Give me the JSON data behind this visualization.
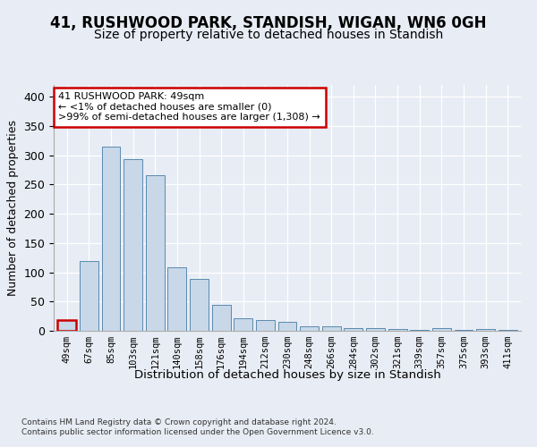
{
  "title": "41, RUSHWOOD PARK, STANDISH, WIGAN, WN6 0GH",
  "subtitle": "Size of property relative to detached houses in Standish",
  "xlabel": "Distribution of detached houses by size in Standish",
  "ylabel": "Number of detached properties",
  "bar_color": "#c8d8e8",
  "bar_edge_color": "#5a8ab0",
  "categories": [
    "49sqm",
    "67sqm",
    "85sqm",
    "103sqm",
    "121sqm",
    "140sqm",
    "158sqm",
    "176sqm",
    "194sqm",
    "212sqm",
    "230sqm",
    "248sqm",
    "266sqm",
    "284sqm",
    "302sqm",
    "321sqm",
    "339sqm",
    "357sqm",
    "375sqm",
    "393sqm",
    "411sqm"
  ],
  "values": [
    19,
    119,
    315,
    293,
    265,
    109,
    88,
    45,
    21,
    18,
    15,
    8,
    7,
    5,
    5,
    3,
    1,
    4,
    1,
    3,
    2
  ],
  "ylim": [
    0,
    420
  ],
  "yticks": [
    0,
    50,
    100,
    150,
    200,
    250,
    300,
    350,
    400
  ],
  "annotation_text": "41 RUSHWOOD PARK: 49sqm\n← <1% of detached houses are smaller (0)\n>99% of semi-detached houses are larger (1,308) →",
  "annotation_box_color": "#ffffff",
  "annotation_border_color": "#cc0000",
  "footer_text": "Contains HM Land Registry data © Crown copyright and database right 2024.\nContains public sector information licensed under the Open Government Licence v3.0.",
  "bg_color": "#e8ecf4",
  "plot_bg_color": "#e8ecf4",
  "grid_color": "#ffffff",
  "title_fontsize": 12,
  "subtitle_fontsize": 10,
  "highlight_bar_index": 0
}
